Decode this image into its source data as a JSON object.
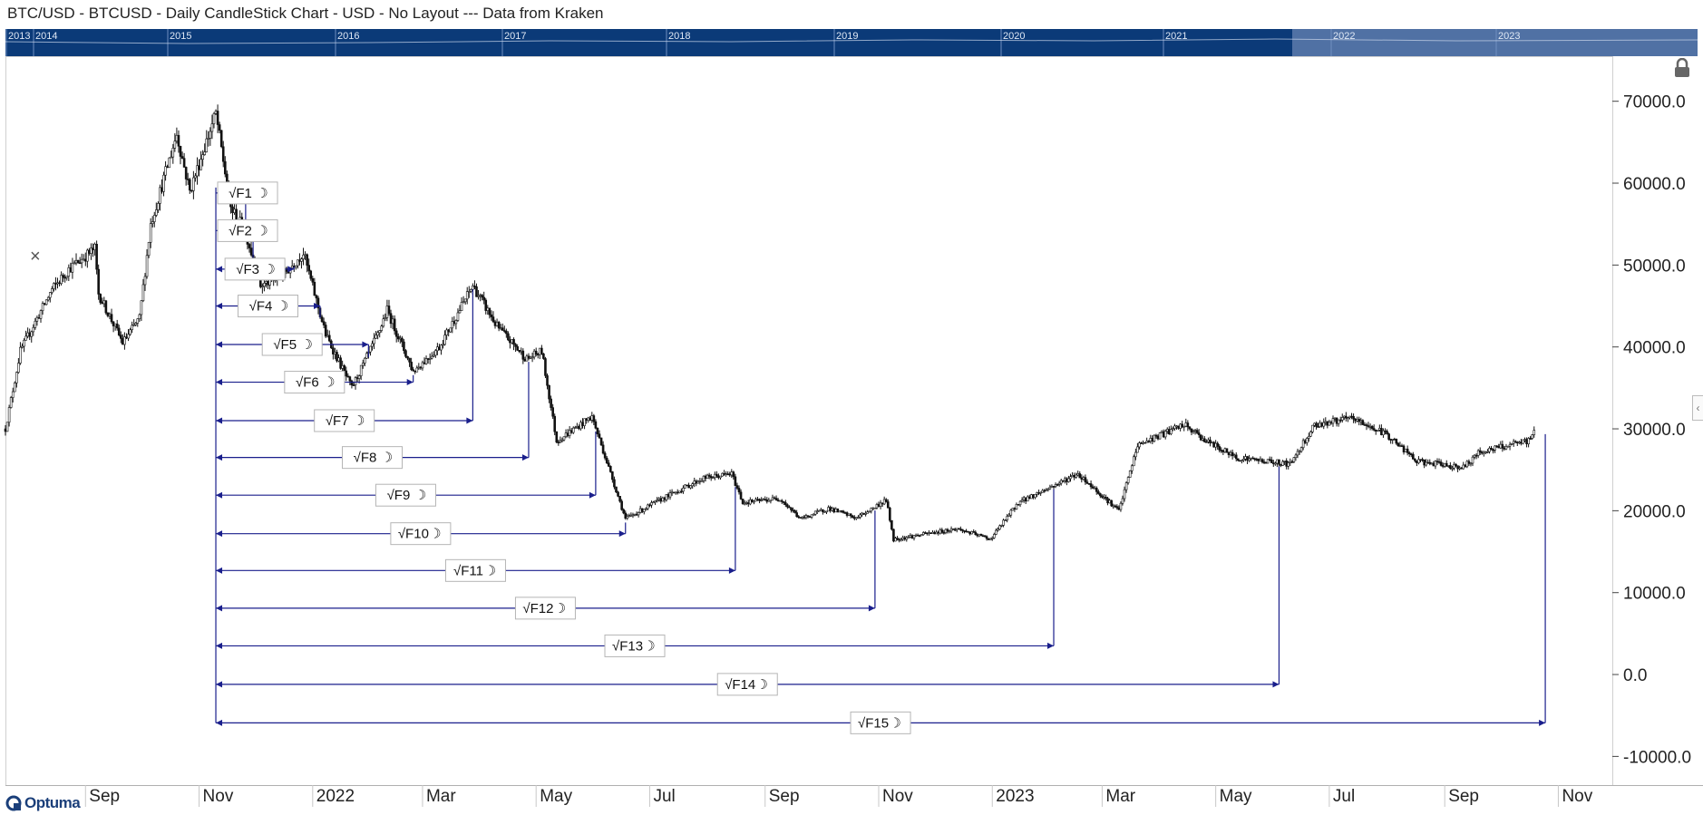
{
  "header": {
    "title": "BTC/USD - BTCUSD - Daily CandleStick Chart - USD - No Layout --- Data from Kraken"
  },
  "overview": {
    "years": [
      "2013",
      "2014",
      "2015",
      "2016",
      "2017",
      "2018",
      "2019",
      "2020",
      "2021",
      "2022",
      "2023"
    ],
    "bg_color": "#0b3a78",
    "highlight_color": "#5878a8"
  },
  "brand": {
    "logo_text": "Optuma"
  },
  "icons": {
    "lock": "lock-icon",
    "close": "close-icon",
    "collapse": "chevron-left-icon"
  },
  "colors": {
    "candle": "#111111",
    "tool": "#1a1f8c"
  },
  "chart_data": {
    "type": "candlestick",
    "title": "",
    "xlabel": "",
    "ylabel": "",
    "ylim": [
      -13500,
      75500
    ],
    "y_ticks": [
      70000,
      60000,
      50000,
      40000,
      30000,
      20000,
      10000,
      0,
      -10000
    ],
    "y_tick_labels": [
      "70000.0",
      "60000.0",
      "50000.0",
      "40000.0",
      "30000.0",
      "20000.0",
      "10000.0",
      "0.0",
      "-10000.0"
    ],
    "x_range": [
      "2021-07-20",
      "2023-11-30"
    ],
    "x_ticks": [
      {
        "label": "Sep",
        "date": "2021-09-01"
      },
      {
        "label": "Nov",
        "date": "2021-11-01"
      },
      {
        "label": "2022",
        "date": "2022-01-01"
      },
      {
        "label": "Mar",
        "date": "2022-03-01"
      },
      {
        "label": "May",
        "date": "2022-05-01"
      },
      {
        "label": "Jul",
        "date": "2022-07-01"
      },
      {
        "label": "Sep",
        "date": "2022-09-01"
      },
      {
        "label": "Nov",
        "date": "2022-11-01"
      },
      {
        "label": "2023",
        "date": "2023-01-01"
      },
      {
        "label": "Mar",
        "date": "2023-03-01"
      },
      {
        "label": "May",
        "date": "2023-05-01"
      },
      {
        "label": "Jul",
        "date": "2023-07-01"
      },
      {
        "label": "Sep",
        "date": "2023-09-01"
      },
      {
        "label": "Nov",
        "date": "2023-11-01"
      }
    ],
    "price_path": [
      [
        "2021-07-20",
        30000
      ],
      [
        "2021-07-28",
        39500
      ],
      [
        "2021-08-14",
        47000
      ],
      [
        "2021-08-23",
        49500
      ],
      [
        "2021-09-06",
        52000
      ],
      [
        "2021-09-08",
        46500
      ],
      [
        "2021-09-21",
        40500
      ],
      [
        "2021-09-30",
        43500
      ],
      [
        "2021-10-06",
        55000
      ],
      [
        "2021-10-20",
        66000
      ],
      [
        "2021-10-27",
        59000
      ],
      [
        "2021-11-10",
        68500
      ],
      [
        "2021-11-18",
        57000
      ],
      [
        "2021-11-26",
        54000
      ],
      [
        "2021-12-04",
        47500
      ],
      [
        "2021-12-15",
        48500
      ],
      [
        "2021-12-27",
        51500
      ],
      [
        "2022-01-08",
        41500
      ],
      [
        "2022-01-22",
        35000
      ],
      [
        "2022-02-05",
        41500
      ],
      [
        "2022-02-10",
        44500
      ],
      [
        "2022-02-24",
        37000
      ],
      [
        "2022-03-10",
        40000
      ],
      [
        "2022-03-28",
        47500
      ],
      [
        "2022-04-10",
        42500
      ],
      [
        "2022-04-26",
        38500
      ],
      [
        "2022-05-04",
        39500
      ],
      [
        "2022-05-12",
        28500
      ],
      [
        "2022-05-31",
        31500
      ],
      [
        "2022-06-13",
        22500
      ],
      [
        "2022-06-18",
        19000
      ],
      [
        "2022-07-08",
        21500
      ],
      [
        "2022-07-30",
        24000
      ],
      [
        "2022-08-14",
        24500
      ],
      [
        "2022-08-20",
        21000
      ],
      [
        "2022-09-09",
        21500
      ],
      [
        "2022-09-20",
        19000
      ],
      [
        "2022-10-05",
        20300
      ],
      [
        "2022-10-20",
        19100
      ],
      [
        "2022-11-05",
        21300
      ],
      [
        "2022-11-09",
        16500
      ],
      [
        "2022-12-13",
        17800
      ],
      [
        "2022-12-31",
        16550
      ],
      [
        "2023-01-15",
        21000
      ],
      [
        "2023-02-16",
        24500
      ],
      [
        "2023-03-10",
        20000
      ],
      [
        "2023-03-20",
        28000
      ],
      [
        "2023-04-14",
        30500
      ],
      [
        "2023-04-26",
        28500
      ],
      [
        "2023-05-12",
        26500
      ],
      [
        "2023-06-10",
        25700
      ],
      [
        "2023-06-23",
        30500
      ],
      [
        "2023-07-13",
        31300
      ],
      [
        "2023-08-01",
        29300
      ],
      [
        "2023-08-17",
        26000
      ],
      [
        "2023-09-11",
        25300
      ],
      [
        "2023-09-20",
        27200
      ],
      [
        "2023-10-16",
        28500
      ],
      [
        "2023-10-19",
        29800
      ]
    ],
    "tool": {
      "name": "Square-root Fibonacci time projection",
      "anchor_date": "2021-11-10",
      "items": [
        {
          "label": "√F1",
          "end": "2021-11-26",
          "level": 58800
        },
        {
          "label": "√F2",
          "end": "2021-11-30",
          "level": 54200
        },
        {
          "label": "√F3",
          "end": "2021-12-22",
          "level": 49500
        },
        {
          "label": "√F4",
          "end": "2022-01-05",
          "level": 45000
        },
        {
          "label": "√F5",
          "end": "2022-01-31",
          "level": 40300
        },
        {
          "label": "√F6",
          "end": "2022-02-24",
          "level": 35700
        },
        {
          "label": "√F7",
          "end": "2022-03-28",
          "level": 31000
        },
        {
          "label": "√F8",
          "end": "2022-04-27",
          "level": 26500
        },
        {
          "label": "√F9",
          "end": "2022-06-02",
          "level": 21900
        },
        {
          "label": "√F10",
          "end": "2022-06-18",
          "level": 17200
        },
        {
          "label": "√F11",
          "end": "2022-08-16",
          "level": 12700
        },
        {
          "label": "√F12",
          "end": "2022-10-30",
          "level": 8100
        },
        {
          "label": "√F13",
          "end": "2023-02-03",
          "level": 3500
        },
        {
          "label": "√F14",
          "end": "2023-06-04",
          "level": -1200
        },
        {
          "label": "√F15",
          "end": "2023-10-25",
          "level": -5900
        }
      ]
    }
  }
}
